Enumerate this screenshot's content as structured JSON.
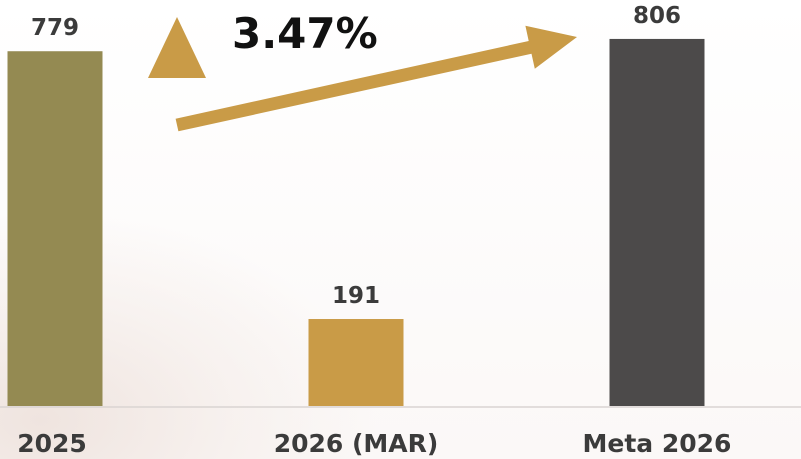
{
  "chart_data": {
    "type": "bar",
    "categories": [
      "2025",
      "2026 (MAR)",
      "Meta 2026"
    ],
    "values": [
      779,
      191,
      806
    ],
    "value_labels": [
      "779",
      "191",
      "806"
    ],
    "ylim": [
      0,
      830
    ],
    "grid": false,
    "colors": [
      "#948a52",
      "#c99b47",
      "#4c4a4a"
    ],
    "annotation": {
      "text": "3.47%",
      "icon": "triangle-up-icon",
      "arrow_from": "2025",
      "arrow_to": "Meta 2026",
      "color": "#c99b47"
    }
  }
}
